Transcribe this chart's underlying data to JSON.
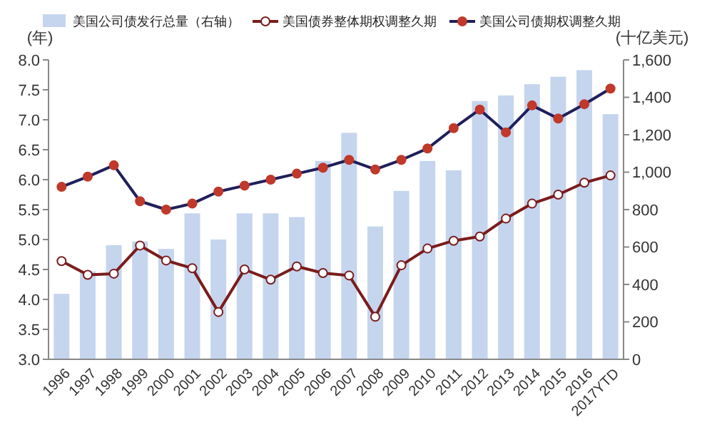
{
  "chart_data": {
    "type": "bar",
    "ylabel": "(年)",
    "y2label": "(十亿美元)",
    "legend": "top",
    "categories": [
      "1996",
      "1997",
      "1998",
      "1999",
      "2000",
      "2001",
      "2002",
      "2003",
      "2004",
      "2005",
      "2006",
      "2007",
      "2008",
      "2009",
      "2010",
      "2011",
      "2012",
      "2013",
      "2014",
      "2015",
      "2016",
      "2017YTD"
    ],
    "series": [
      {
        "name": "美国公司债发行总量（右轴）",
        "axis": "y2",
        "color": "#c5d5ee",
        "values": [
          350,
          470,
          610,
          630,
          590,
          780,
          640,
          780,
          780,
          760,
          1060,
          1210,
          710,
          900,
          1060,
          1010,
          1380,
          1410,
          1470,
          1510,
          1545,
          1310
        ]
      },
      {
        "name": "美国债券整体期权调整久期",
        "type": "line",
        "marker": "circle",
        "color": "#7b1c1c",
        "values": [
          4.64,
          4.41,
          4.43,
          4.9,
          4.65,
          4.52,
          3.79,
          4.5,
          4.33,
          4.55,
          4.44,
          4.4,
          3.71,
          4.57,
          4.85,
          4.98,
          5.05,
          5.35,
          5.6,
          5.75,
          5.95,
          6.07
        ]
      },
      {
        "name": "美国公司债期权调整久期",
        "type": "line",
        "marker": "circle",
        "color": "#1f1f5c",
        "values": [
          5.88,
          6.05,
          6.24,
          5.64,
          5.5,
          5.6,
          5.8,
          5.9,
          6.0,
          6.1,
          6.2,
          6.33,
          6.17,
          6.33,
          6.52,
          6.86,
          7.17,
          6.79,
          7.24,
          7.02,
          7.26,
          7.52
        ]
      }
    ],
    "ylim": [
      3,
      8
    ],
    "yticks": [
      {
        "value": 3,
        "label": "3.0"
      },
      3.5,
      {
        "value": 4,
        "label": "4.0"
      },
      4.5,
      {
        "value": 5,
        "label": "5.0"
      },
      5.5,
      {
        "value": 6,
        "label": "6.0"
      },
      6.5,
      {
        "value": 7,
        "label": "7.0"
      },
      7.5,
      {
        "value": 8,
        "label": "8.0"
      }
    ],
    "y2lim": [
      0,
      1600
    ],
    "y2ticks": [
      0,
      200,
      400,
      600,
      800,
      {
        "value": 1000,
        "label": "1,000"
      },
      {
        "value": 1200,
        "label": "1,200"
      },
      {
        "value": 1400,
        "label": "1,400"
      },
      {
        "value": 1600,
        "label": "1,600"
      }
    ]
  }
}
